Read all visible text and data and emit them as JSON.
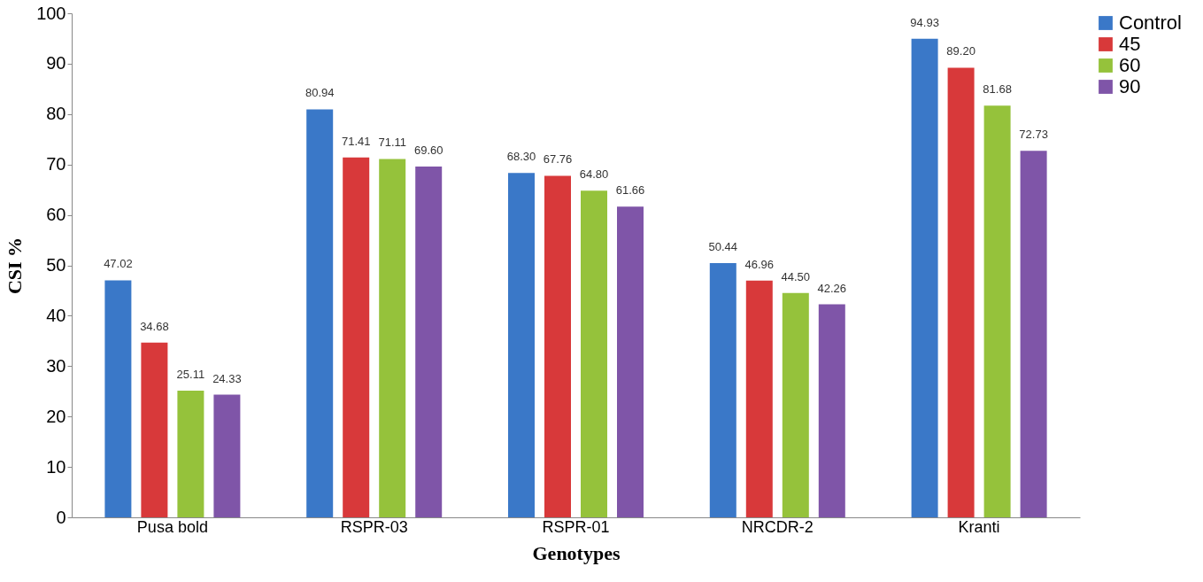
{
  "chart_data": {
    "type": "bar",
    "xlabel": "Genotypes",
    "ylabel": "CSI %",
    "categories": [
      "Pusa bold",
      "RSPR-03",
      "RSPR-01",
      "NRCDR-2",
      "Kranti"
    ],
    "series": [
      {
        "name": "Control",
        "color": "#3a78c8",
        "values": [
          47.02,
          80.94,
          68.3,
          50.44,
          94.93
        ],
        "value_labels": [
          "47.02",
          "80.94",
          "68.30",
          "50.44",
          "94.93"
        ]
      },
      {
        "name": "45",
        "color": "#d8393a",
        "values": [
          34.68,
          71.41,
          67.76,
          46.96,
          89.2
        ],
        "value_labels": [
          "34.68",
          "71.41",
          "67.76",
          "46.96",
          "89.20"
        ]
      },
      {
        "name": "60",
        "color": "#95c23b",
        "values": [
          25.11,
          71.11,
          64.8,
          44.5,
          81.68
        ],
        "value_labels": [
          "25.11",
          "71.11",
          "64.80",
          "44.50",
          "81.68"
        ]
      },
      {
        "name": "90",
        "color": "#7f55a8",
        "values": [
          24.33,
          69.6,
          61.66,
          42.26,
          72.73
        ],
        "value_labels": [
          "24.33",
          "69.60",
          "61.66",
          "42.26",
          "72.73"
        ]
      }
    ],
    "ylim": [
      0,
      100
    ],
    "yticks": [
      0,
      10,
      20,
      30,
      40,
      50,
      60,
      70,
      80,
      90,
      100
    ],
    "grid": false,
    "legend": "right"
  }
}
